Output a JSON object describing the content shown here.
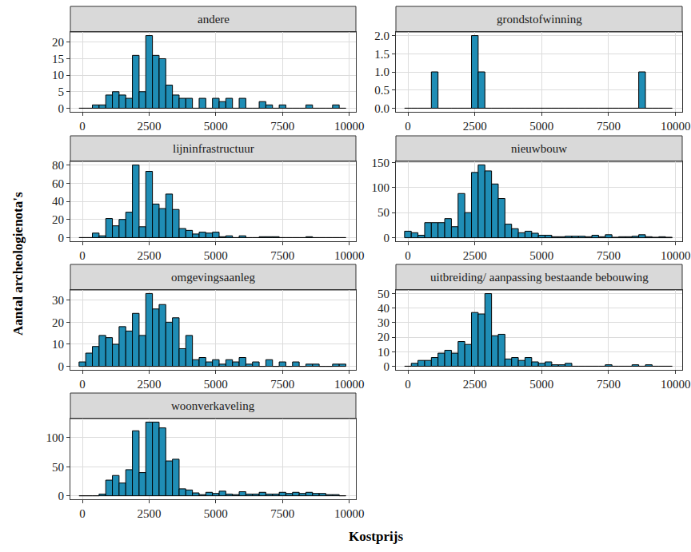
{
  "chart_data": {
    "type": "histogram",
    "xlabel": "Kostprijs",
    "ylabel": "Aantal archeologienota's",
    "color": "#1f8db5",
    "grid": true,
    "xlim": [
      -450,
      10250
    ],
    "xticks": [
      0,
      2500,
      5000,
      7500,
      10000
    ],
    "bins": [
      -125,
      125,
      375,
      625,
      875,
      1125,
      1375,
      1625,
      1875,
      2125,
      2375,
      2625,
      2875,
      3125,
      3375,
      3625,
      3875,
      4125,
      4375,
      4625,
      4875,
      5125,
      5375,
      5625,
      5875,
      6125,
      6375,
      6625,
      6875,
      7125,
      7375,
      7625,
      7875,
      8125,
      8375,
      8625,
      8875,
      9125,
      9375,
      9625,
      9875
    ],
    "facets": [
      {
        "title": "andere",
        "ylim": [
          -1.1,
          23.1
        ],
        "yticks": [
          0,
          5,
          10,
          15,
          20
        ],
        "counts": [
          0,
          0,
          1,
          1,
          4,
          5,
          4,
          3,
          16,
          5,
          22,
          16,
          15,
          7,
          4,
          3,
          3,
          0,
          3,
          0,
          3,
          2,
          3,
          0,
          3,
          0,
          0,
          2,
          1,
          0,
          1,
          0,
          0,
          0,
          1,
          0,
          0,
          0,
          1,
          0
        ]
      },
      {
        "title": "grondstofwinning",
        "ylim": [
          -0.1,
          2.1
        ],
        "yticks": [
          {
            "value": 0,
            "label": "0.0"
          },
          {
            "value": 0.5,
            "label": "0.5"
          },
          {
            "value": 1,
            "label": "1.0"
          },
          {
            "value": 1.5,
            "label": "1.5"
          },
          {
            "value": 2,
            "label": "2.0"
          }
        ],
        "counts": [
          0,
          0,
          0,
          0,
          1,
          0,
          0,
          0,
          0,
          0,
          2,
          1,
          0,
          0,
          0,
          0,
          0,
          0,
          0,
          0,
          0,
          0,
          0,
          0,
          0,
          0,
          0,
          0,
          0,
          0,
          0,
          0,
          0,
          0,
          0,
          1,
          0,
          0,
          0,
          0
        ]
      },
      {
        "title": "lijninfrastructuur",
        "ylim": [
          -4,
          84
        ],
        "yticks": [
          0,
          20,
          40,
          60,
          80
        ],
        "counts": [
          0,
          0,
          5,
          2,
          21,
          13,
          20,
          28,
          80,
          12,
          73,
          37,
          32,
          48,
          31,
          10,
          8,
          4,
          6,
          5,
          6,
          1,
          2,
          0,
          2,
          0,
          0,
          1,
          1,
          1,
          0,
          0,
          0,
          0,
          1,
          0,
          0,
          0,
          0,
          0
        ]
      },
      {
        "title": "nieuwbouw",
        "ylim": [
          -7,
          152
        ],
        "yticks": [
          0,
          50,
          100,
          150
        ],
        "counts": [
          13,
          10,
          5,
          30,
          30,
          30,
          38,
          22,
          88,
          50,
          130,
          145,
          133,
          107,
          78,
          27,
          18,
          10,
          13,
          9,
          5,
          5,
          2,
          2,
          3,
          3,
          3,
          2,
          5,
          2,
          6,
          1,
          2,
          2,
          3,
          6,
          2,
          1,
          2,
          1
        ]
      },
      {
        "title": "omgevingsaanleg",
        "ylim": [
          -1.6,
          34.6
        ],
        "yticks": [
          0,
          10,
          20,
          30
        ],
        "counts": [
          2,
          6,
          9,
          14,
          13,
          10,
          18,
          16,
          24,
          14,
          33,
          26,
          28,
          20,
          22,
          8,
          14,
          3,
          4,
          2,
          3,
          1,
          3,
          2,
          4,
          1,
          2,
          0,
          3,
          0,
          2,
          0,
          2,
          0,
          1,
          1,
          0,
          0,
          1,
          1
        ]
      },
      {
        "title": "uitbreiding/ aanpassing bestaande bebouwing",
        "ylim": [
          -2.5,
          52.5
        ],
        "yticks": [
          0,
          10,
          20,
          30,
          40,
          50
        ],
        "counts": [
          0,
          2,
          4,
          4,
          6,
          9,
          11,
          9,
          17,
          15,
          37,
          36,
          50,
          21,
          22,
          5,
          6,
          4,
          6,
          3,
          2,
          3,
          1,
          1,
          2,
          0,
          0,
          0,
          0,
          0,
          1,
          0,
          0,
          0,
          1,
          0,
          1,
          0,
          0,
          0
        ]
      },
      {
        "title": "woonverkaveling",
        "ylim": [
          -6,
          133
        ],
        "yticks": [
          0,
          50,
          100
        ],
        "counts": [
          0,
          0,
          0,
          3,
          27,
          35,
          22,
          45,
          112,
          40,
          127,
          127,
          117,
          60,
          63,
          12,
          10,
          5,
          2,
          6,
          4,
          8,
          3,
          2,
          7,
          3,
          3,
          6,
          3,
          3,
          6,
          4,
          6,
          4,
          6,
          4,
          4,
          2,
          2,
          0
        ]
      }
    ]
  }
}
